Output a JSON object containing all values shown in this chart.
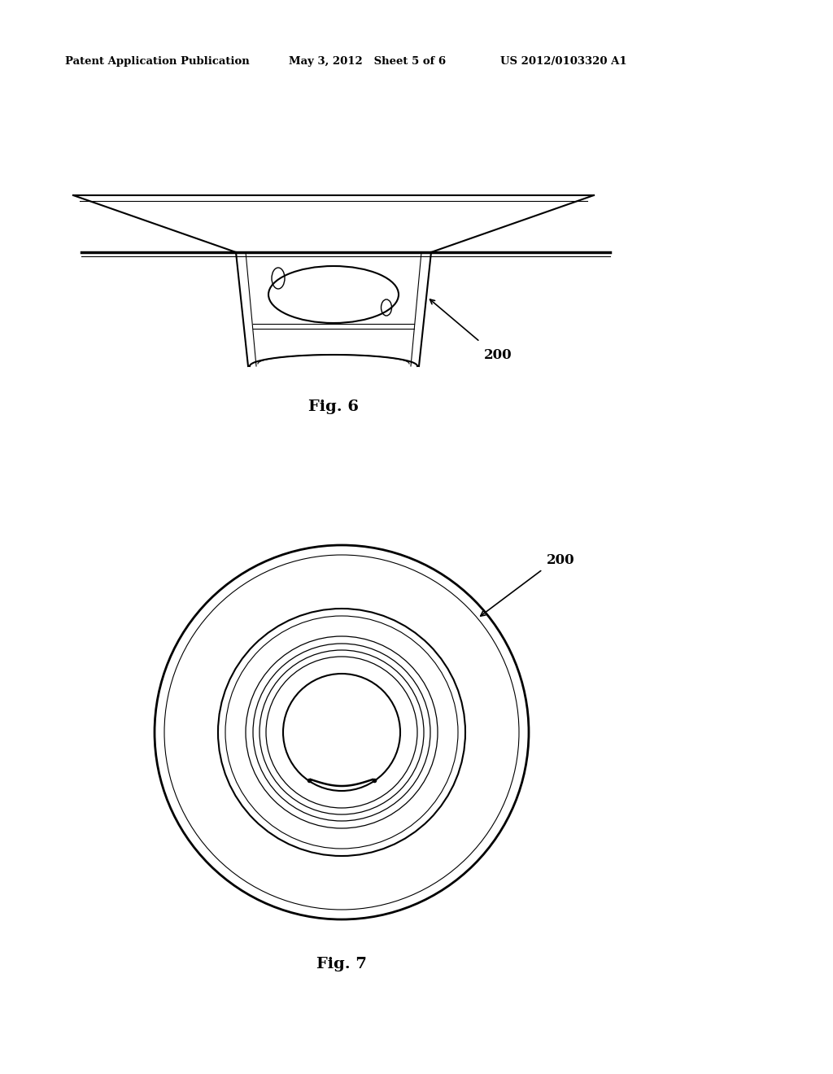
{
  "bg_color": "#ffffff",
  "header_left": "Patent Application Publication",
  "header_mid": "May 3, 2012   Sheet 5 of 6",
  "header_right": "US 2012/0103320 A1",
  "fig6_label": "Fig. 6",
  "fig7_label": "Fig. 7",
  "label_200": "200",
  "line_color": "#000000",
  "line_width": 1.5,
  "thick_line": 2.5
}
